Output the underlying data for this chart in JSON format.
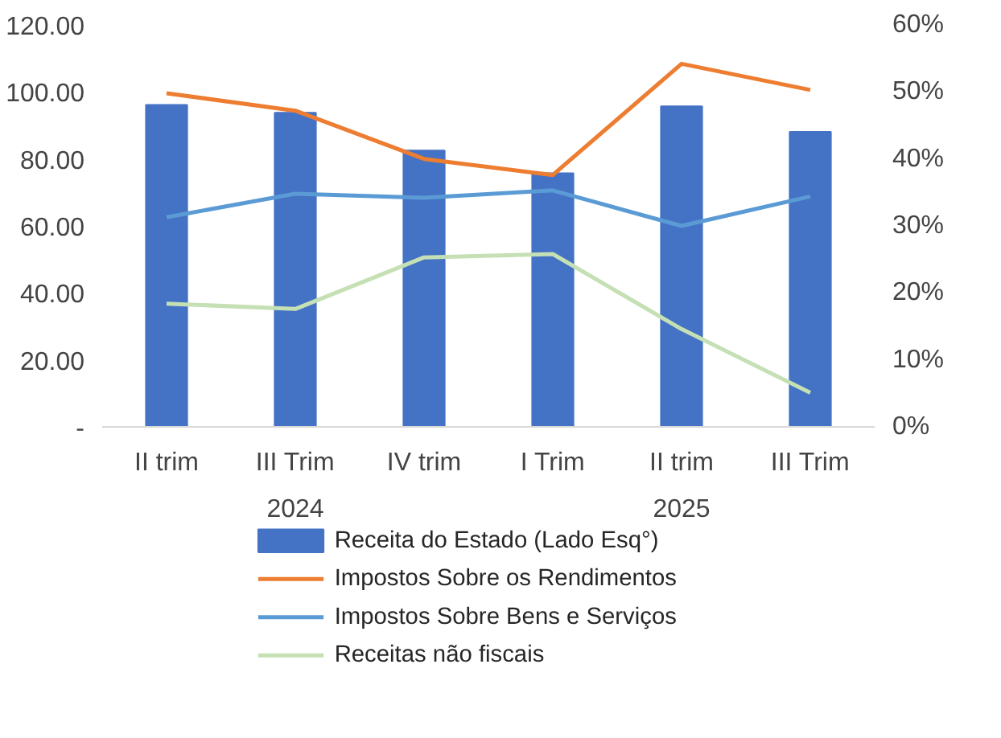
{
  "chart_data": {
    "type": "bar",
    "categories": [
      "II trim",
      "III Trim",
      "IV trim",
      "I Trim",
      "II trim",
      "III Trim"
    ],
    "annotations": [
      "2024",
      "2025"
    ],
    "series": [
      {
        "name": "Receita do Estado (Lado Esq°)",
        "color": "#4472c4",
        "values": [
          96.1,
          93.8,
          82.5,
          75.7,
          95.7,
          88.1
        ]
      },
      {
        "name": "Impostos Sobre os Rendimentos",
        "type": "line",
        "axis": "y2",
        "color": "#ed7d31",
        "values": [
          49.8,
          47.2,
          40.0,
          37.6,
          54.2,
          50.3
        ]
      },
      {
        "name": "Impostos Sobre Bens e Serviços",
        "type": "line",
        "axis": "y2",
        "color": "#5b9bd5",
        "values": [
          31.3,
          34.8,
          34.2,
          35.3,
          30.0,
          34.4
        ]
      },
      {
        "name": "Receitas não fiscais",
        "type": "line",
        "axis": "y2",
        "color": "#c5e0b4",
        "values": [
          18.4,
          17.6,
          25.3,
          25.8,
          14.6,
          5.1
        ]
      }
    ],
    "ylim": [
      0,
      120
    ],
    "yticks": [
      {
        "value": 0,
        "label": "-"
      },
      {
        "value": 20,
        "label": "20.00"
      },
      {
        "value": 40,
        "label": "40.00"
      },
      {
        "value": 60,
        "label": "60.00"
      },
      {
        "value": 80,
        "label": "80.00"
      },
      {
        "value": 100,
        "label": "100.00"
      },
      {
        "value": 120,
        "label": "120.00"
      }
    ],
    "y2lim": [
      0,
      60
    ],
    "y2ticks": [
      {
        "value": 0,
        "label": "0%"
      },
      {
        "value": 10,
        "label": "10%"
      },
      {
        "value": 20,
        "label": "20%"
      },
      {
        "value": 30,
        "label": "30%"
      },
      {
        "value": 40,
        "label": "40%"
      },
      {
        "value": 50,
        "label": "50%"
      },
      {
        "value": 60,
        "label": "60%"
      }
    ],
    "grid": false,
    "legend": "bottom",
    "marker": "none",
    "line_style": "solid"
  }
}
